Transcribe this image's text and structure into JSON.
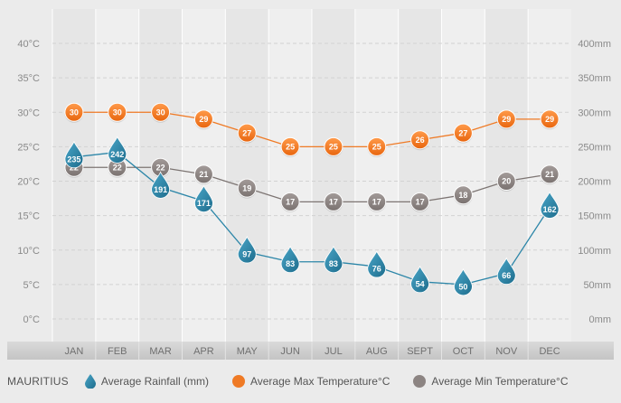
{
  "legend": {
    "country": "MAURITIUS",
    "rainfall": "Average Rainfall (mm)",
    "max_temp": "Average Max Temperature°C",
    "min_temp": "Average Min Temperature°C"
  },
  "colors": {
    "rainfall": "#2c86a8",
    "max_temp": "#ef7a25",
    "min_temp": "#8c8482",
    "line_min": "#7d7573",
    "grid": "#d2d2d2",
    "month_band": "#cfcfcf"
  },
  "chart_data": {
    "type": "line",
    "categories": [
      "JAN",
      "FEB",
      "MAR",
      "APR",
      "MAY",
      "JUN",
      "JUL",
      "AUG",
      "SEPT",
      "OCT",
      "NOV",
      "DEC"
    ],
    "y_left": {
      "ticks": [
        "40°C",
        "35°C",
        "30°C",
        "25°C",
        "20°C",
        "15°C",
        "10°C",
        "5°C",
        "0°C"
      ],
      "range": [
        0,
        40
      ]
    },
    "y_right": {
      "ticks": [
        "400mm",
        "350mm",
        "300mm",
        "250mm",
        "200mm",
        "150mm",
        "100mm",
        "50mm",
        "0mm"
      ],
      "range": [
        0,
        400
      ]
    },
    "grid": true,
    "legend_position": "bottom",
    "series": [
      {
        "name": "Average Rainfall (mm)",
        "axis": "right",
        "marker": "drop",
        "values": [
          235,
          242,
          191,
          171,
          97,
          83,
          83,
          76,
          54,
          50,
          66,
          162
        ]
      },
      {
        "name": "Average Max Temperature°C",
        "axis": "left",
        "marker": "circle",
        "values": [
          30,
          30,
          30,
          29,
          27,
          25,
          25,
          25,
          26,
          27,
          29,
          29
        ]
      },
      {
        "name": "Average Min Temperature°C",
        "axis": "left",
        "marker": "circle",
        "values": [
          22,
          22,
          22,
          21,
          19,
          17,
          17,
          17,
          17,
          18,
          20,
          21
        ]
      }
    ]
  }
}
